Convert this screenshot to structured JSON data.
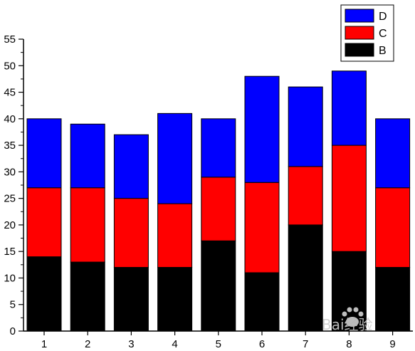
{
  "chart_data": {
    "type": "bar",
    "stacked": true,
    "categories": [
      "1",
      "2",
      "3",
      "4",
      "5",
      "6",
      "7",
      "8",
      "9"
    ],
    "series": [
      {
        "name": "B",
        "color": "#000000",
        "values": [
          14,
          13,
          12,
          12,
          17,
          11,
          20,
          15,
          12
        ]
      },
      {
        "name": "C",
        "color": "#ff0000",
        "values": [
          13,
          14,
          13,
          12,
          12,
          17,
          11,
          20,
          15
        ]
      },
      {
        "name": "D",
        "color": "#0000ff",
        "values": [
          13,
          12,
          12,
          17,
          11,
          20,
          15,
          14,
          13
        ]
      }
    ],
    "ylim": [
      0,
      55
    ],
    "yticks": [
      "0",
      "5",
      "10",
      "15",
      "20",
      "25",
      "30",
      "35",
      "40",
      "45",
      "50",
      "55"
    ],
    "title": "",
    "xlabel": "",
    "ylabel": "",
    "legend": {
      "position": "top-right",
      "order": [
        "D",
        "C",
        "B"
      ]
    },
    "grid": false
  },
  "watermark": {
    "text": "Bai经验",
    "icon": "paw-icon"
  }
}
